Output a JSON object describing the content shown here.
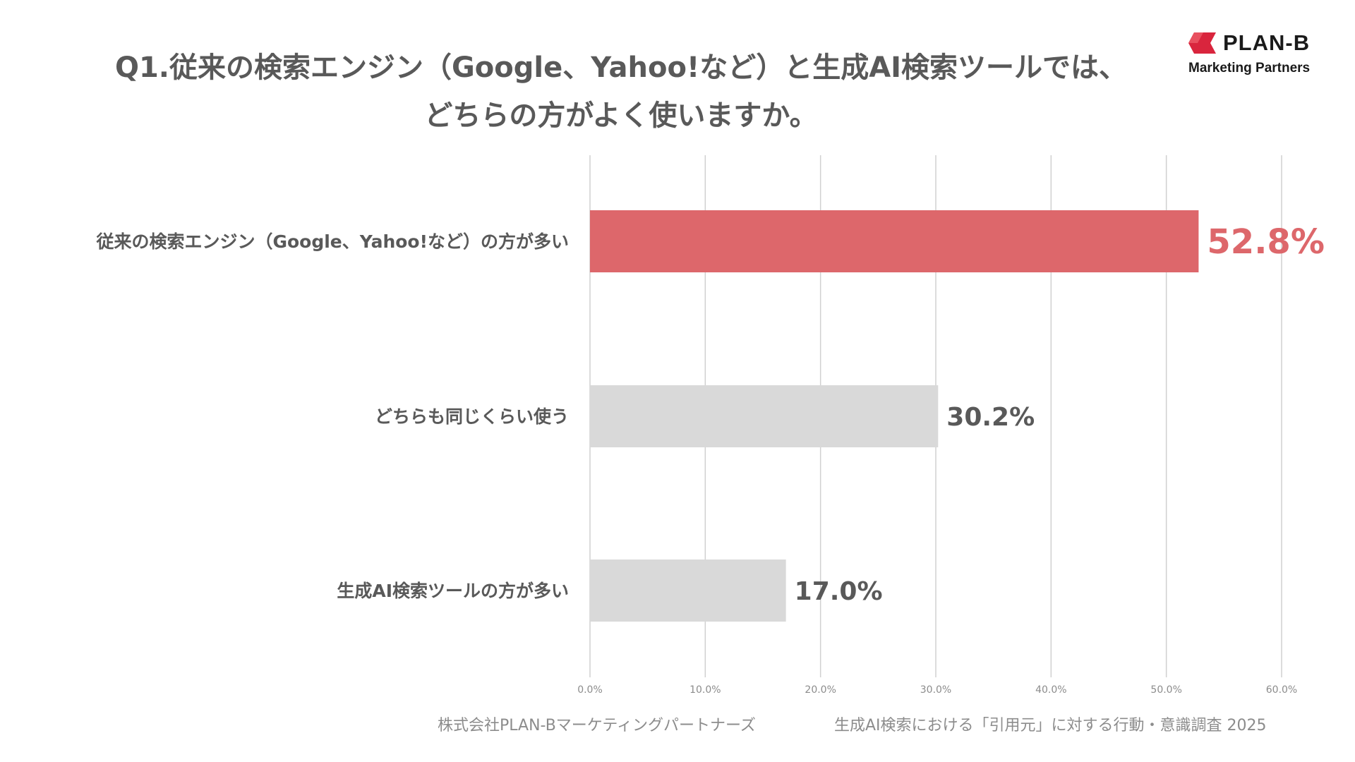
{
  "title_lines": [
    "Q1.従来の検索エンジン（Google、Yahoo!など）と生成AI検索ツールでは、",
    "どちらの方がよく使いますか。"
  ],
  "logo": {
    "name": "PLAN-B",
    "tagline": "Marketing Partners"
  },
  "footer": {
    "left": "株式会社PLAN-Bマーケティングパートナーズ",
    "right": "生成AI検索における「引用元」に対する行動・意識調査 2025"
  },
  "colors": {
    "highlight": "#dd676b",
    "bar_default": "#d9d9d9",
    "grid": "#d0d0d0",
    "label": "#595959",
    "tick": "#8c8c8c",
    "logo_red": "#d9253d"
  },
  "chart_data": {
    "type": "bar",
    "orientation": "horizontal",
    "categories": [
      "従来の検索エンジン（Google、Yahoo!など）の方が多い",
      "どちらも同じくらい使う",
      "生成AI検索ツールの方が多い"
    ],
    "values": [
      52.8,
      30.2,
      17.0
    ],
    "value_labels": [
      "52.8%",
      "30.2%",
      "17.0%"
    ],
    "highlight_index": 0,
    "xlim": [
      0,
      60
    ],
    "xticks": [
      0,
      10,
      20,
      30,
      40,
      50,
      60
    ],
    "xtick_labels": [
      "0.0%",
      "10.0%",
      "20.0%",
      "30.0%",
      "40.0%",
      "50.0%",
      "60.0%"
    ],
    "grid": true,
    "title": "",
    "xlabel": "",
    "ylabel": ""
  }
}
